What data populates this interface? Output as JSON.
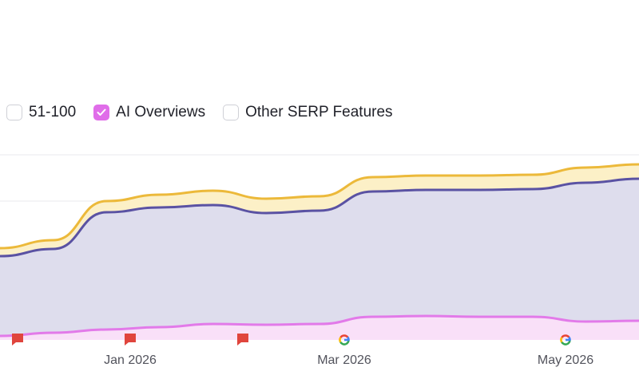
{
  "legend": {
    "items": [
      {
        "label": "51-100",
        "checked": false,
        "color": "#cfd0d6"
      },
      {
        "label": "AI Overviews",
        "checked": true,
        "color": "#e06de9"
      },
      {
        "label": "Other SERP Features",
        "checked": false,
        "color": "#cfd0d6"
      }
    ]
  },
  "colors": {
    "top": "#ecb93a",
    "top_fill": "#fcf0c7",
    "mid": "#5a52a3",
    "mid_fill": "#dedded",
    "bottom": "#e27ae9",
    "bottom_fill": "#f9e0f8",
    "grid": "#e9e9ec",
    "marker_flag": "#e0453d"
  },
  "chart_data": {
    "type": "area",
    "x_ticks": [
      "Jan 2026",
      "Mar 2026",
      "May 2026"
    ],
    "series": [
      {
        "name": "AI Overviews",
        "values": [
          0.5,
          0.9,
          1.3,
          1.6,
          2.0,
          1.9,
          2.0,
          2.9,
          3.0,
          2.9,
          2.9,
          2.3,
          2.4
        ]
      },
      {
        "values": [
          10.0,
          10.5,
          14.7,
          15.0,
          14.9,
          14.0,
          14.2,
          15.7,
          15.8,
          15.9,
          16.0,
          17.4,
          17.8
        ]
      },
      {
        "values": [
          1.0,
          1.1,
          1.4,
          1.6,
          1.8,
          1.8,
          1.8,
          1.8,
          1.8,
          1.8,
          1.8,
          1.9,
          1.8
        ]
      }
    ],
    "markers": [
      {
        "type": "flag"
      },
      {
        "type": "flag"
      },
      {
        "type": "flag"
      },
      {
        "type": "google"
      },
      {
        "type": "google"
      }
    ],
    "grid": true
  }
}
